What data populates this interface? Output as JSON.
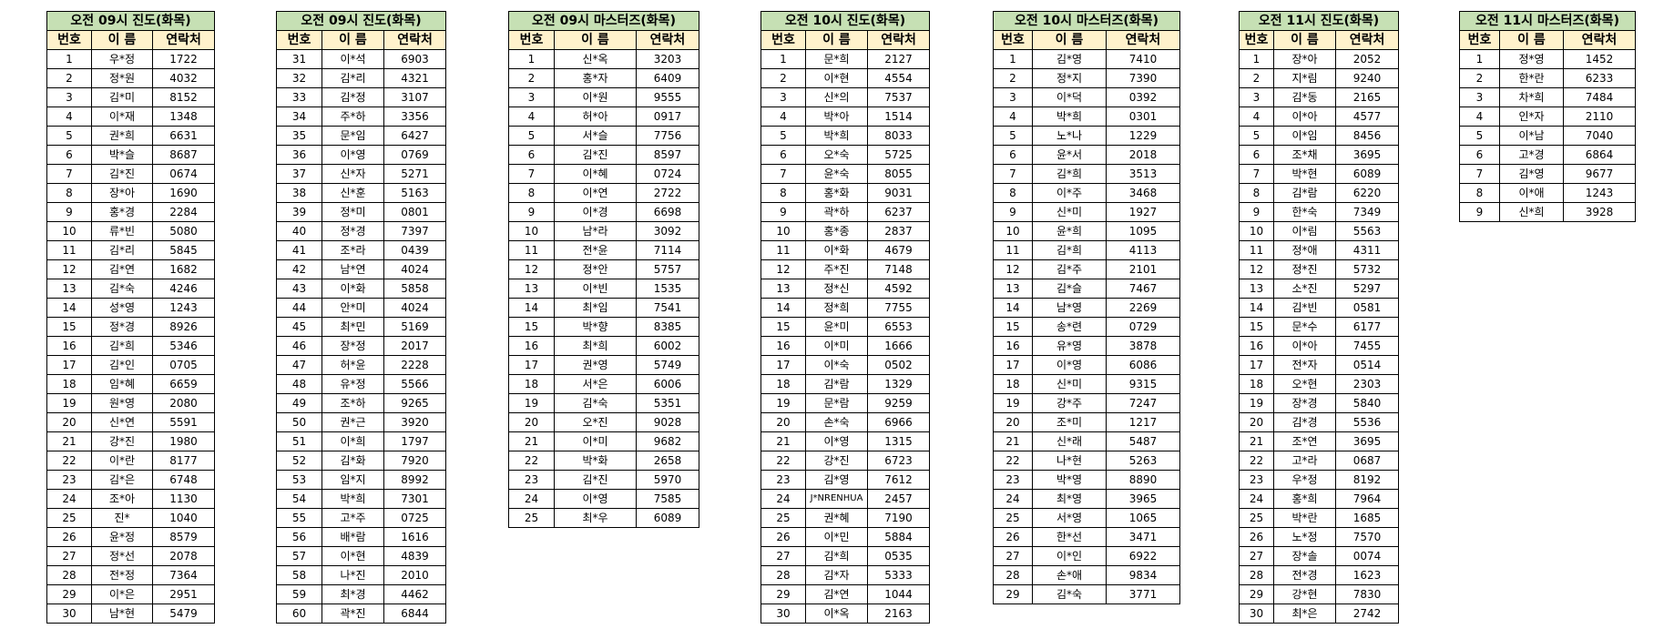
{
  "headers": {
    "no": "번호",
    "name": "이 름",
    "contact": "연락처"
  },
  "colors": {
    "title_bg": "#c6e0b4",
    "header_bg": "#fff2cc",
    "border": "#000000"
  },
  "tables": [
    {
      "title": "오전 09시 진도(화목)",
      "rows": [
        [
          "1",
          "우*정",
          "1722"
        ],
        [
          "2",
          "정*원",
          "4032"
        ],
        [
          "3",
          "김*미",
          "8152"
        ],
        [
          "4",
          "이*재",
          "1348"
        ],
        [
          "5",
          "권*희",
          "6631"
        ],
        [
          "6",
          "박*슬",
          "8687"
        ],
        [
          "7",
          "김*진",
          "0674"
        ],
        [
          "8",
          "장*아",
          "1690"
        ],
        [
          "9",
          "홍*경",
          "2284"
        ],
        [
          "10",
          "류*빈",
          "5080"
        ],
        [
          "11",
          "김*리",
          "5845"
        ],
        [
          "12",
          "김*연",
          "1682"
        ],
        [
          "13",
          "김*숙",
          "4246"
        ],
        [
          "14",
          "성*영",
          "1243"
        ],
        [
          "15",
          "정*경",
          "8926"
        ],
        [
          "16",
          "김*희",
          "5346"
        ],
        [
          "17",
          "김*인",
          "0705"
        ],
        [
          "18",
          "임*혜",
          "6659"
        ],
        [
          "19",
          "원*영",
          "2080"
        ],
        [
          "20",
          "신*연",
          "5591"
        ],
        [
          "21",
          "강*진",
          "1980"
        ],
        [
          "22",
          "이*란",
          "8177"
        ],
        [
          "23",
          "김*은",
          "6748"
        ],
        [
          "24",
          "조*아",
          "1130"
        ],
        [
          "25",
          "진*",
          "1040"
        ],
        [
          "26",
          "윤*정",
          "8579"
        ],
        [
          "27",
          "정*선",
          "2078"
        ],
        [
          "28",
          "전*정",
          "7364"
        ],
        [
          "29",
          "이*은",
          "2951"
        ],
        [
          "30",
          "남*현",
          "5479"
        ]
      ]
    },
    {
      "title": "오전 09시 진도(화목)",
      "rows": [
        [
          "31",
          "이*석",
          "6903"
        ],
        [
          "32",
          "김*리",
          "4321"
        ],
        [
          "33",
          "김*정",
          "3107"
        ],
        [
          "34",
          "주*하",
          "3356"
        ],
        [
          "35",
          "문*임",
          "6427"
        ],
        [
          "36",
          "이*영",
          "0769"
        ],
        [
          "37",
          "신*자",
          "5271"
        ],
        [
          "38",
          "신*훈",
          "5163"
        ],
        [
          "39",
          "정*미",
          "0801"
        ],
        [
          "40",
          "정*경",
          "7397"
        ],
        [
          "41",
          "조*라",
          "0439"
        ],
        [
          "42",
          "남*연",
          "4024"
        ],
        [
          "43",
          "이*화",
          "5858"
        ],
        [
          "44",
          "안*미",
          "4024"
        ],
        [
          "45",
          "최*민",
          "5169"
        ],
        [
          "46",
          "장*정",
          "2017"
        ],
        [
          "47",
          "허*윤",
          "2228"
        ],
        [
          "48",
          "유*정",
          "5566"
        ],
        [
          "49",
          "조*하",
          "9265"
        ],
        [
          "50",
          "권*근",
          "3920"
        ],
        [
          "51",
          "이*희",
          "1797"
        ],
        [
          "52",
          "김*화",
          "7920"
        ],
        [
          "53",
          "임*지",
          "8992"
        ],
        [
          "54",
          "박*희",
          "7301"
        ],
        [
          "55",
          "고*주",
          "0725"
        ],
        [
          "56",
          "배*람",
          "1616"
        ],
        [
          "57",
          "이*현",
          "4839"
        ],
        [
          "58",
          "나*진",
          "2010"
        ],
        [
          "59",
          "최*경",
          "4462"
        ],
        [
          "60",
          "곽*진",
          "6844"
        ]
      ]
    },
    {
      "title": "오전 09시 마스터즈(화목)",
      "rows": [
        [
          "1",
          "신*옥",
          "3203"
        ],
        [
          "2",
          "홍*자",
          "6409"
        ],
        [
          "3",
          "이*원",
          "9555"
        ],
        [
          "4",
          "허*아",
          "0917"
        ],
        [
          "5",
          "서*슬",
          "7756"
        ],
        [
          "6",
          "김*진",
          "8597"
        ],
        [
          "7",
          "이*혜",
          "0724"
        ],
        [
          "8",
          "이*연",
          "2722"
        ],
        [
          "9",
          "이*경",
          "6698"
        ],
        [
          "10",
          "남*라",
          "3092"
        ],
        [
          "11",
          "전*윤",
          "7114"
        ],
        [
          "12",
          "정*안",
          "5757"
        ],
        [
          "13",
          "이*빈",
          "1535"
        ],
        [
          "14",
          "최*임",
          "7541"
        ],
        [
          "15",
          "박*향",
          "8385"
        ],
        [
          "16",
          "최*희",
          "6002"
        ],
        [
          "17",
          "권*영",
          "5749"
        ],
        [
          "18",
          "서*은",
          "6006"
        ],
        [
          "19",
          "김*숙",
          "5351"
        ],
        [
          "20",
          "오*진",
          "9028"
        ],
        [
          "21",
          "이*미",
          "9682"
        ],
        [
          "22",
          "박*화",
          "2658"
        ],
        [
          "23",
          "김*진",
          "5970"
        ],
        [
          "24",
          "이*영",
          "7585"
        ],
        [
          "25",
          "최*우",
          "6089"
        ]
      ]
    },
    {
      "title": "오전 10시 진도(화목)",
      "rows": [
        [
          "1",
          "문*희",
          "2127"
        ],
        [
          "2",
          "이*현",
          "4554"
        ],
        [
          "3",
          "신*의",
          "7537"
        ],
        [
          "4",
          "박*아",
          "1514"
        ],
        [
          "5",
          "박*희",
          "8033"
        ],
        [
          "6",
          "오*숙",
          "5725"
        ],
        [
          "7",
          "윤*숙",
          "8055"
        ],
        [
          "8",
          "홍*화",
          "9031"
        ],
        [
          "9",
          "곽*하",
          "6237"
        ],
        [
          "10",
          "홍*종",
          "2837"
        ],
        [
          "11",
          "이*화",
          "4679"
        ],
        [
          "12",
          "주*진",
          "7148"
        ],
        [
          "13",
          "정*신",
          "4592"
        ],
        [
          "14",
          "정*희",
          "7755"
        ],
        [
          "15",
          "윤*미",
          "6553"
        ],
        [
          "16",
          "이*미",
          "1666"
        ],
        [
          "17",
          "이*숙",
          "0502"
        ],
        [
          "18",
          "김*람",
          "1329"
        ],
        [
          "19",
          "문*람",
          "9259"
        ],
        [
          "20",
          "손*숙",
          "6966"
        ],
        [
          "21",
          "이*영",
          "1315"
        ],
        [
          "22",
          "강*진",
          "6723"
        ],
        [
          "23",
          "김*영",
          "7612"
        ],
        [
          "24",
          "J*NRENHUA",
          "2457"
        ],
        [
          "25",
          "권*혜",
          "7190"
        ],
        [
          "26",
          "이*민",
          "5884"
        ],
        [
          "27",
          "김*희",
          "0535"
        ],
        [
          "28",
          "김*자",
          "5333"
        ],
        [
          "29",
          "김*연",
          "1044"
        ],
        [
          "30",
          "이*옥",
          "2163"
        ]
      ]
    },
    {
      "title": "오전 10시 마스터즈(화목)",
      "rows": [
        [
          "1",
          "김*영",
          "7410"
        ],
        [
          "2",
          "정*지",
          "7390"
        ],
        [
          "3",
          "이*덕",
          "0392"
        ],
        [
          "4",
          "박*희",
          "0301"
        ],
        [
          "5",
          "노*나",
          "1229"
        ],
        [
          "6",
          "윤*서",
          "2018"
        ],
        [
          "7",
          "김*희",
          "3513"
        ],
        [
          "8",
          "이*주",
          "3468"
        ],
        [
          "9",
          "신*미",
          "1927"
        ],
        [
          "10",
          "윤*희",
          "1095"
        ],
        [
          "11",
          "김*희",
          "4113"
        ],
        [
          "12",
          "김*주",
          "2101"
        ],
        [
          "13",
          "김*슬",
          "7467"
        ],
        [
          "14",
          "남*영",
          "2269"
        ],
        [
          "15",
          "송*련",
          "0729"
        ],
        [
          "16",
          "유*영",
          "3878"
        ],
        [
          "17",
          "이*영",
          "6086"
        ],
        [
          "18",
          "신*미",
          "9315"
        ],
        [
          "19",
          "강*주",
          "7247"
        ],
        [
          "20",
          "조*미",
          "1217"
        ],
        [
          "21",
          "신*래",
          "5487"
        ],
        [
          "22",
          "나*현",
          "5263"
        ],
        [
          "23",
          "박*영",
          "8890"
        ],
        [
          "24",
          "최*영",
          "3965"
        ],
        [
          "25",
          "서*영",
          "1065"
        ],
        [
          "26",
          "한*선",
          "3471"
        ],
        [
          "27",
          "이*인",
          "6922"
        ],
        [
          "28",
          "손*애",
          "9834"
        ],
        [
          "29",
          "김*숙",
          "3771"
        ]
      ]
    },
    {
      "title": "오전 11시 진도(화목)",
      "rows": [
        [
          "1",
          "장*아",
          "2052"
        ],
        [
          "2",
          "지*림",
          "9240"
        ],
        [
          "3",
          "김*동",
          "2165"
        ],
        [
          "4",
          "이*아",
          "4577"
        ],
        [
          "5",
          "이*임",
          "8456"
        ],
        [
          "6",
          "조*채",
          "3695"
        ],
        [
          "7",
          "박*현",
          "6089"
        ],
        [
          "8",
          "김*람",
          "6220"
        ],
        [
          "9",
          "한*숙",
          "7349"
        ],
        [
          "10",
          "이*림",
          "5563"
        ],
        [
          "11",
          "정*애",
          "4311"
        ],
        [
          "12",
          "정*진",
          "5732"
        ],
        [
          "13",
          "소*진",
          "5297"
        ],
        [
          "14",
          "김*빈",
          "0581"
        ],
        [
          "15",
          "문*수",
          "6177"
        ],
        [
          "16",
          "이*아",
          "7455"
        ],
        [
          "17",
          "전*자",
          "0514"
        ],
        [
          "18",
          "오*현",
          "2303"
        ],
        [
          "19",
          "장*경",
          "5840"
        ],
        [
          "20",
          "김*경",
          "5536"
        ],
        [
          "21",
          "조*연",
          "3695"
        ],
        [
          "22",
          "고*라",
          "0687"
        ],
        [
          "23",
          "우*정",
          "8192"
        ],
        [
          "24",
          "홍*희",
          "7964"
        ],
        [
          "25",
          "박*란",
          "1685"
        ],
        [
          "26",
          "노*정",
          "7570"
        ],
        [
          "27",
          "장*솔",
          "0074"
        ],
        [
          "28",
          "전*경",
          "1623"
        ],
        [
          "29",
          "강*현",
          "7830"
        ],
        [
          "30",
          "최*은",
          "2742"
        ]
      ]
    },
    {
      "title": "오전 11시 마스터즈(화목)",
      "rows": [
        [
          "1",
          "정*영",
          "1452"
        ],
        [
          "2",
          "한*란",
          "6233"
        ],
        [
          "3",
          "차*희",
          "7484"
        ],
        [
          "4",
          "인*자",
          "2110"
        ],
        [
          "5",
          "이*남",
          "7040"
        ],
        [
          "6",
          "고*경",
          "6864"
        ],
        [
          "7",
          "김*영",
          "9677"
        ],
        [
          "8",
          "이*애",
          "1243"
        ],
        [
          "9",
          "신*희",
          "3928"
        ]
      ]
    }
  ]
}
